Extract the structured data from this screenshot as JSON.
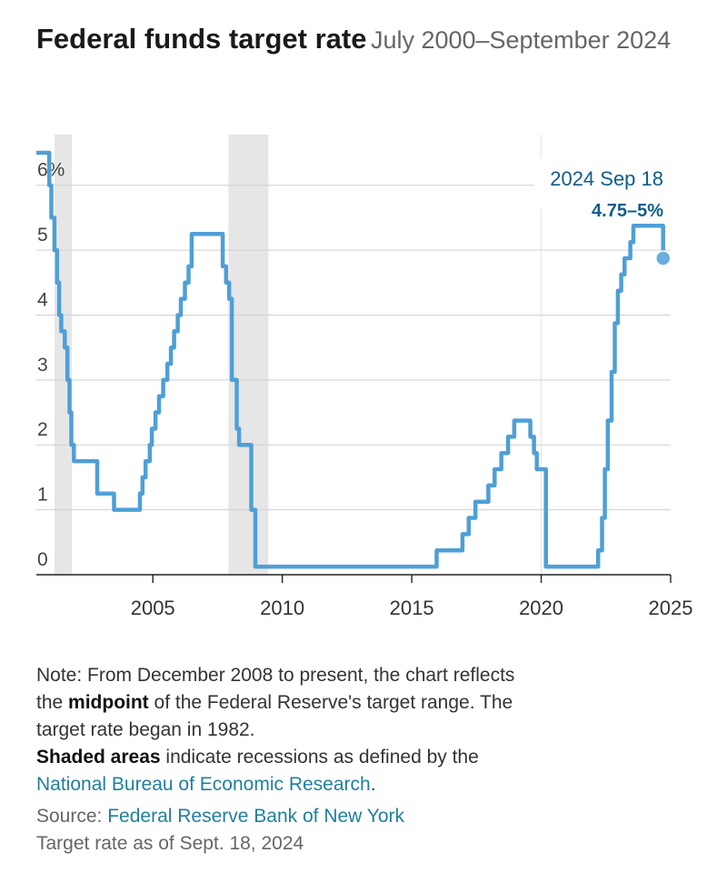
{
  "header": {
    "title": "Federal funds target rate",
    "subtitle": "July 2000–September 2024"
  },
  "chart_data": {
    "type": "line",
    "title": "Federal funds target rate",
    "subtitle": "July 2000–September 2024",
    "xlabel": "",
    "ylabel": "",
    "xlim": [
      2000.5,
      2025.0
    ],
    "ylim": [
      0,
      6.5
    ],
    "x_ticks": [
      2005,
      2010,
      2015,
      2020,
      2025
    ],
    "x_tick_labels": [
      "2005",
      "2010",
      "2015",
      "2020",
      "2025"
    ],
    "y_ticks": [
      0,
      1,
      2,
      3,
      4,
      5,
      6
    ],
    "y_tick_labels": [
      "0",
      "1",
      "2",
      "3",
      "4",
      "5",
      "6%"
    ],
    "grid": true,
    "line_color": "#4f9fd6",
    "recession_color": "#e6e6e6",
    "recessions": [
      [
        2001.2,
        2001.87
      ],
      [
        2007.92,
        2009.46
      ]
    ],
    "series": [
      {
        "name": "Federal funds target rate",
        "points": [
          [
            2000.5,
            6.5
          ],
          [
            2001.0,
            6.5
          ],
          [
            2001.0,
            6.0
          ],
          [
            2001.08,
            6.0
          ],
          [
            2001.08,
            5.5
          ],
          [
            2001.2,
            5.5
          ],
          [
            2001.2,
            5.0
          ],
          [
            2001.3,
            5.0
          ],
          [
            2001.3,
            4.5
          ],
          [
            2001.38,
            4.5
          ],
          [
            2001.38,
            4.0
          ],
          [
            2001.46,
            4.0
          ],
          [
            2001.46,
            3.75
          ],
          [
            2001.6,
            3.75
          ],
          [
            2001.6,
            3.5
          ],
          [
            2001.7,
            3.5
          ],
          [
            2001.7,
            3.0
          ],
          [
            2001.78,
            3.0
          ],
          [
            2001.78,
            2.5
          ],
          [
            2001.85,
            2.5
          ],
          [
            2001.85,
            2.0
          ],
          [
            2001.95,
            2.0
          ],
          [
            2001.95,
            1.75
          ],
          [
            2002.85,
            1.75
          ],
          [
            2002.85,
            1.25
          ],
          [
            2003.5,
            1.25
          ],
          [
            2003.5,
            1.0
          ],
          [
            2004.5,
            1.0
          ],
          [
            2004.5,
            1.25
          ],
          [
            2004.6,
            1.25
          ],
          [
            2004.6,
            1.5
          ],
          [
            2004.72,
            1.5
          ],
          [
            2004.72,
            1.75
          ],
          [
            2004.88,
            1.75
          ],
          [
            2004.88,
            2.0
          ],
          [
            2004.96,
            2.0
          ],
          [
            2004.96,
            2.25
          ],
          [
            2005.1,
            2.25
          ],
          [
            2005.1,
            2.5
          ],
          [
            2005.24,
            2.5
          ],
          [
            2005.24,
            2.75
          ],
          [
            2005.4,
            2.75
          ],
          [
            2005.4,
            3.0
          ],
          [
            2005.56,
            3.0
          ],
          [
            2005.56,
            3.25
          ],
          [
            2005.7,
            3.25
          ],
          [
            2005.7,
            3.5
          ],
          [
            2005.82,
            3.5
          ],
          [
            2005.82,
            3.75
          ],
          [
            2005.96,
            3.75
          ],
          [
            2005.96,
            4.0
          ],
          [
            2006.08,
            4.0
          ],
          [
            2006.08,
            4.25
          ],
          [
            2006.24,
            4.25
          ],
          [
            2006.24,
            4.5
          ],
          [
            2006.38,
            4.5
          ],
          [
            2006.38,
            4.75
          ],
          [
            2006.5,
            4.75
          ],
          [
            2006.5,
            5.25
          ],
          [
            2007.7,
            5.25
          ],
          [
            2007.7,
            4.75
          ],
          [
            2007.83,
            4.75
          ],
          [
            2007.83,
            4.5
          ],
          [
            2007.95,
            4.5
          ],
          [
            2007.95,
            4.25
          ],
          [
            2008.05,
            4.25
          ],
          [
            2008.05,
            3.0
          ],
          [
            2008.24,
            3.0
          ],
          [
            2008.24,
            2.25
          ],
          [
            2008.33,
            2.25
          ],
          [
            2008.33,
            2.0
          ],
          [
            2008.8,
            2.0
          ],
          [
            2008.8,
            1.0
          ],
          [
            2008.96,
            1.0
          ],
          [
            2008.96,
            0.125
          ],
          [
            2015.96,
            0.125
          ],
          [
            2015.96,
            0.375
          ],
          [
            2016.96,
            0.375
          ],
          [
            2016.96,
            0.625
          ],
          [
            2017.2,
            0.625
          ],
          [
            2017.2,
            0.875
          ],
          [
            2017.46,
            0.875
          ],
          [
            2017.46,
            1.125
          ],
          [
            2017.96,
            1.125
          ],
          [
            2017.96,
            1.375
          ],
          [
            2018.2,
            1.375
          ],
          [
            2018.2,
            1.625
          ],
          [
            2018.46,
            1.625
          ],
          [
            2018.46,
            1.875
          ],
          [
            2018.72,
            1.875
          ],
          [
            2018.72,
            2.125
          ],
          [
            2018.96,
            2.125
          ],
          [
            2018.96,
            2.375
          ],
          [
            2019.58,
            2.375
          ],
          [
            2019.58,
            2.125
          ],
          [
            2019.72,
            2.125
          ],
          [
            2019.72,
            1.875
          ],
          [
            2019.83,
            1.875
          ],
          [
            2019.83,
            1.625
          ],
          [
            2020.18,
            1.625
          ],
          [
            2020.18,
            0.125
          ],
          [
            2022.2,
            0.125
          ],
          [
            2022.2,
            0.375
          ],
          [
            2022.35,
            0.375
          ],
          [
            2022.35,
            0.875
          ],
          [
            2022.46,
            0.875
          ],
          [
            2022.46,
            1.625
          ],
          [
            2022.57,
            1.625
          ],
          [
            2022.57,
            2.375
          ],
          [
            2022.72,
            2.375
          ],
          [
            2022.72,
            3.125
          ],
          [
            2022.84,
            3.125
          ],
          [
            2022.84,
            3.875
          ],
          [
            2022.96,
            3.875
          ],
          [
            2022.96,
            4.375
          ],
          [
            2023.09,
            4.375
          ],
          [
            2023.09,
            4.625
          ],
          [
            2023.22,
            4.625
          ],
          [
            2023.22,
            4.875
          ],
          [
            2023.44,
            4.875
          ],
          [
            2023.44,
            5.125
          ],
          [
            2023.56,
            5.125
          ],
          [
            2023.56,
            5.375
          ],
          [
            2024.71,
            5.375
          ],
          [
            2024.71,
            4.875
          ]
        ]
      }
    ],
    "annotation": {
      "date": "2024 Sep 18",
      "value": "4.75–5%",
      "point": [
        2024.71,
        4.875
      ],
      "date_color": "#0f5d8c",
      "value_color": "#0f5d8c"
    }
  },
  "note": {
    "l1": "Note: From December 2008 to present, the chart reflects",
    "l2a": "the ",
    "l2b": "midpoint",
    "l2c": " of the Federal Reserve's target range. The",
    "l3": "target rate began in 1982.",
    "l4a": "Shaded areas",
    "l4b": " indicate recessions as defined by the",
    "l5a": "National Bureau of Economic Research",
    "l5b": "."
  },
  "source": {
    "prefix": "Source: ",
    "name": "Federal Reserve Bank of New York",
    "asof": "Target rate as of Sept. 18, 2024"
  }
}
